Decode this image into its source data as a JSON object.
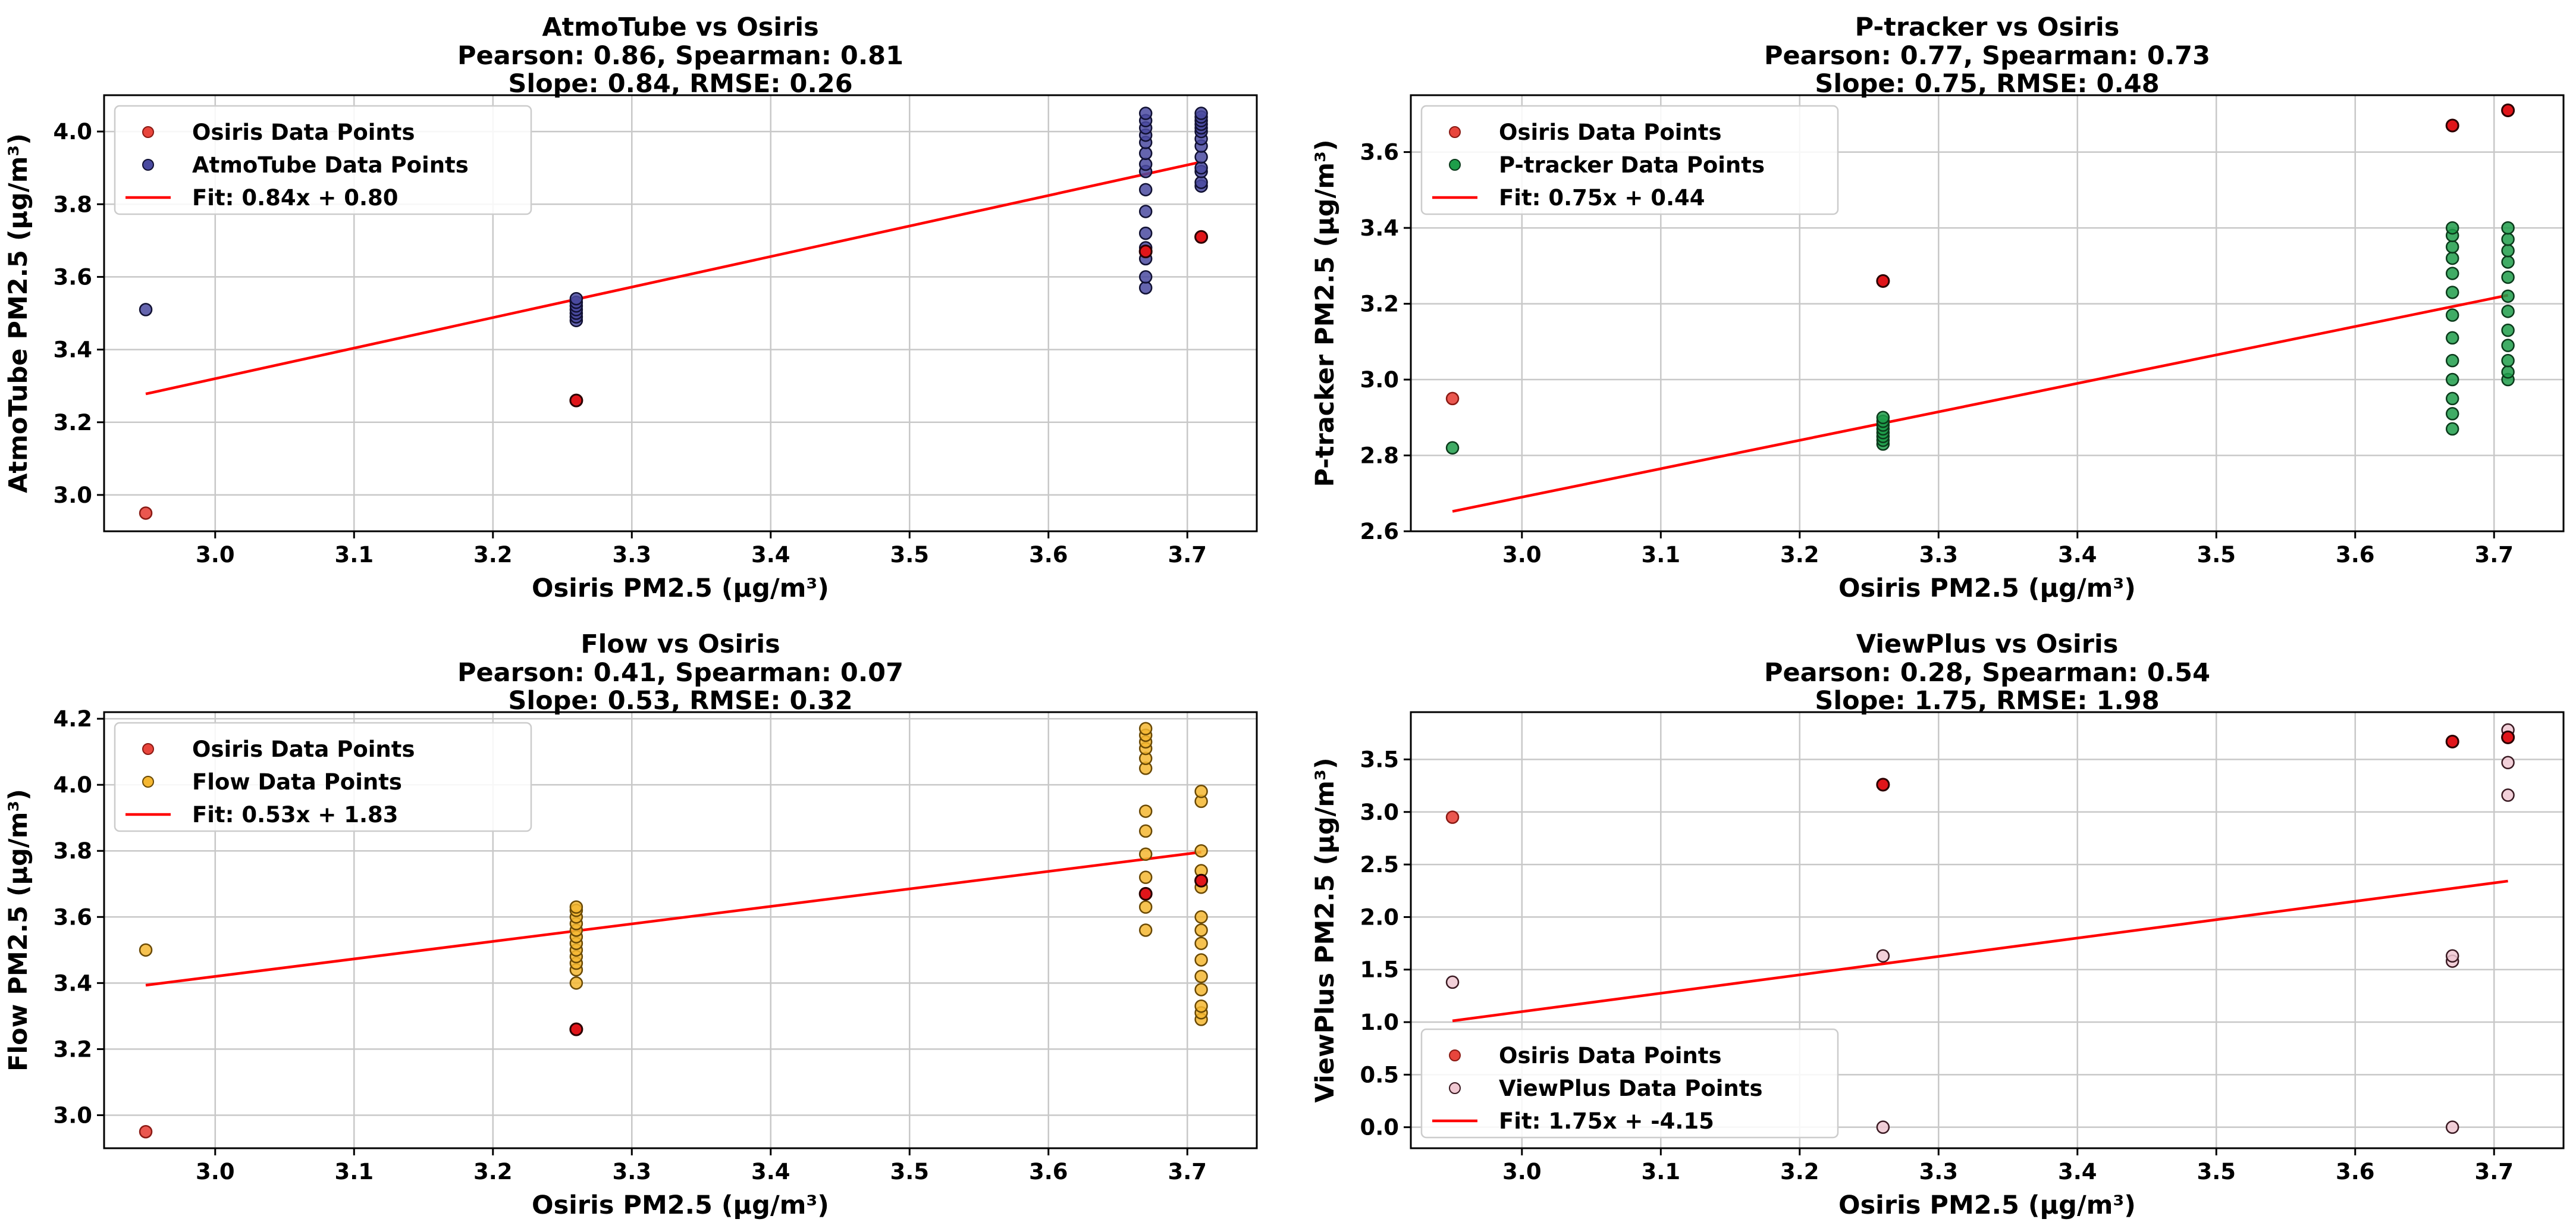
{
  "chart_data": [
    {
      "type": "scatter",
      "title": "AtmoTube vs Osiris",
      "subtitle1": "Pearson: 0.86, Spearman: 0.81",
      "subtitle2": "Slope: 0.84, RMSE: 0.26",
      "xlabel": "Osiris PM2.5 (µg/m³)",
      "ylabel": "AtmoTube PM2.5 (µg/m³)",
      "xlim": [
        2.92,
        3.75
      ],
      "ylim": [
        2.9,
        4.1
      ],
      "xticks": [
        3.0,
        3.1,
        3.2,
        3.3,
        3.4,
        3.5,
        3.6,
        3.7
      ],
      "yticks": [
        3.0,
        3.2,
        3.4,
        3.6,
        3.8,
        4.0
      ],
      "tick_format": 1,
      "grid": true,
      "legend_position": "upper-left",
      "fit": {
        "slope": 0.84,
        "intercept": 0.8,
        "x_range": [
          2.95,
          3.71
        ],
        "label": "Fit: 0.84x + 0.80",
        "color": "#ff0000"
      },
      "series": [
        {
          "name": "Osiris Data Points",
          "color": "#e8453c",
          "edge": "#8a1a14",
          "points": [
            [
              2.95,
              2.95
            ],
            [
              3.26,
              3.26
            ],
            [
              3.67,
              3.67
            ],
            [
              3.71,
              3.71
            ]
          ]
        },
        {
          "name": "AtmoTube Data Points",
          "color": "#4a4aa0",
          "edge": "#111133",
          "points": [
            [
              2.95,
              3.51
            ],
            [
              3.26,
              3.48
            ],
            [
              3.26,
              3.49
            ],
            [
              3.26,
              3.5
            ],
            [
              3.26,
              3.51
            ],
            [
              3.26,
              3.52
            ],
            [
              3.26,
              3.53
            ],
            [
              3.26,
              3.54
            ],
            [
              3.67,
              3.57
            ],
            [
              3.67,
              3.6
            ],
            [
              3.67,
              3.65
            ],
            [
              3.67,
              3.68
            ],
            [
              3.67,
              3.72
            ],
            [
              3.67,
              3.78
            ],
            [
              3.67,
              3.84
            ],
            [
              3.67,
              3.89
            ],
            [
              3.67,
              3.91
            ],
            [
              3.67,
              3.94
            ],
            [
              3.67,
              3.97
            ],
            [
              3.67,
              3.99
            ],
            [
              3.67,
              4.01
            ],
            [
              3.67,
              4.03
            ],
            [
              3.67,
              4.05
            ],
            [
              3.71,
              3.85
            ],
            [
              3.71,
              3.86
            ],
            [
              3.71,
              3.89
            ],
            [
              3.71,
              3.9
            ],
            [
              3.71,
              3.93
            ],
            [
              3.71,
              3.96
            ],
            [
              3.71,
              3.98
            ],
            [
              3.71,
              4.0
            ],
            [
              3.71,
              4.01
            ],
            [
              3.71,
              4.02
            ],
            [
              3.71,
              4.03
            ],
            [
              3.71,
              4.04
            ],
            [
              3.71,
              4.05
            ]
          ]
        }
      ]
    },
    {
      "type": "scatter",
      "title": "P-tracker vs Osiris",
      "subtitle1": "Pearson: 0.77, Spearman: 0.73",
      "subtitle2": "Slope: 0.75, RMSE: 0.48",
      "xlabel": "Osiris PM2.5 (µg/m³)",
      "ylabel": "P-tracker PM2.5 (µg/m³)",
      "xlim": [
        2.92,
        3.75
      ],
      "ylim": [
        2.6,
        3.75
      ],
      "xticks": [
        3.0,
        3.1,
        3.2,
        3.3,
        3.4,
        3.5,
        3.6,
        3.7
      ],
      "yticks": [
        2.6,
        2.8,
        3.0,
        3.2,
        3.4,
        3.6
      ],
      "tick_format": 1,
      "grid": true,
      "legend_position": "upper-left",
      "fit": {
        "slope": 0.75,
        "intercept": 0.44,
        "x_range": [
          2.95,
          3.71
        ],
        "label": "Fit: 0.75x + 0.44",
        "color": "#ff0000"
      },
      "series": [
        {
          "name": "Osiris Data Points",
          "color": "#e8453c",
          "edge": "#8a1a14",
          "points": [
            [
              2.95,
              2.95
            ],
            [
              3.26,
              3.26
            ],
            [
              3.67,
              3.67
            ],
            [
              3.71,
              3.71
            ]
          ]
        },
        {
          "name": "P-tracker Data Points",
          "color": "#1e9e4a",
          "edge": "#0b3a1b",
          "points": [
            [
              2.95,
              2.82
            ],
            [
              3.26,
              2.83
            ],
            [
              3.26,
              2.84
            ],
            [
              3.26,
              2.85
            ],
            [
              3.26,
              2.86
            ],
            [
              3.26,
              2.87
            ],
            [
              3.26,
              2.88
            ],
            [
              3.26,
              2.89
            ],
            [
              3.26,
              2.9
            ],
            [
              3.67,
              2.87
            ],
            [
              3.67,
              2.91
            ],
            [
              3.67,
              2.95
            ],
            [
              3.67,
              3.0
            ],
            [
              3.67,
              3.05
            ],
            [
              3.67,
              3.11
            ],
            [
              3.67,
              3.17
            ],
            [
              3.67,
              3.23
            ],
            [
              3.67,
              3.28
            ],
            [
              3.67,
              3.32
            ],
            [
              3.67,
              3.35
            ],
            [
              3.67,
              3.38
            ],
            [
              3.67,
              3.4
            ],
            [
              3.71,
              3.0
            ],
            [
              3.71,
              3.02
            ],
            [
              3.71,
              3.05
            ],
            [
              3.71,
              3.09
            ],
            [
              3.71,
              3.13
            ],
            [
              3.71,
              3.18
            ],
            [
              3.71,
              3.22
            ],
            [
              3.71,
              3.27
            ],
            [
              3.71,
              3.31
            ],
            [
              3.71,
              3.34
            ],
            [
              3.71,
              3.37
            ],
            [
              3.71,
              3.4
            ]
          ]
        }
      ]
    },
    {
      "type": "scatter",
      "title": "Flow vs Osiris",
      "subtitle1": "Pearson: 0.41, Spearman: 0.07",
      "subtitle2": "Slope: 0.53, RMSE: 0.32",
      "xlabel": "Osiris PM2.5 (µg/m³)",
      "ylabel": "Flow PM2.5 (µg/m³)",
      "xlim": [
        2.92,
        3.75
      ],
      "ylim": [
        2.9,
        4.22
      ],
      "xticks": [
        3.0,
        3.1,
        3.2,
        3.3,
        3.4,
        3.5,
        3.6,
        3.7
      ],
      "yticks": [
        3.0,
        3.2,
        3.4,
        3.6,
        3.8,
        4.0,
        4.2
      ],
      "tick_format": 1,
      "grid": true,
      "legend_position": "upper-left",
      "fit": {
        "slope": 0.53,
        "intercept": 1.83,
        "x_range": [
          2.95,
          3.71
        ],
        "label": "Fit: 0.53x + 1.83",
        "color": "#ff0000"
      },
      "series": [
        {
          "name": "Osiris Data Points",
          "color": "#e8453c",
          "edge": "#8a1a14",
          "points": [
            [
              2.95,
              2.95
            ],
            [
              3.26,
              3.26
            ],
            [
              3.67,
              3.67
            ],
            [
              3.71,
              3.71
            ]
          ]
        },
        {
          "name": "Flow Data Points",
          "color": "#f5b731",
          "edge": "#6b4a05",
          "points": [
            [
              2.95,
              3.5
            ],
            [
              3.26,
              3.4
            ],
            [
              3.26,
              3.44
            ],
            [
              3.26,
              3.46
            ],
            [
              3.26,
              3.48
            ],
            [
              3.26,
              3.5
            ],
            [
              3.26,
              3.52
            ],
            [
              3.26,
              3.54
            ],
            [
              3.26,
              3.56
            ],
            [
              3.26,
              3.58
            ],
            [
              3.26,
              3.6
            ],
            [
              3.26,
              3.62
            ],
            [
              3.26,
              3.63
            ],
            [
              3.67,
              3.56
            ],
            [
              3.67,
              3.63
            ],
            [
              3.67,
              3.72
            ],
            [
              3.67,
              3.79
            ],
            [
              3.67,
              3.86
            ],
            [
              3.67,
              3.92
            ],
            [
              3.67,
              4.05
            ],
            [
              3.67,
              4.08
            ],
            [
              3.67,
              4.11
            ],
            [
              3.67,
              4.13
            ],
            [
              3.67,
              4.15
            ],
            [
              3.67,
              4.17
            ],
            [
              3.71,
              3.29
            ],
            [
              3.71,
              3.31
            ],
            [
              3.71,
              3.33
            ],
            [
              3.71,
              3.38
            ],
            [
              3.71,
              3.42
            ],
            [
              3.71,
              3.47
            ],
            [
              3.71,
              3.52
            ],
            [
              3.71,
              3.56
            ],
            [
              3.71,
              3.6
            ],
            [
              3.71,
              3.69
            ],
            [
              3.71,
              3.74
            ],
            [
              3.71,
              3.8
            ],
            [
              3.71,
              3.95
            ],
            [
              3.71,
              3.98
            ]
          ]
        }
      ]
    },
    {
      "type": "scatter",
      "title": "ViewPlus vs Osiris",
      "subtitle1": "Pearson: 0.28, Spearman: 0.54",
      "subtitle2": "Slope: 1.75, RMSE: 1.98",
      "xlabel": "Osiris PM2.5 (µg/m³)",
      "ylabel": "ViewPlus PM2.5 (µg/m³)",
      "xlim": [
        2.92,
        3.75
      ],
      "ylim": [
        -0.2,
        3.95
      ],
      "xticks": [
        3.0,
        3.1,
        3.2,
        3.3,
        3.4,
        3.5,
        3.6,
        3.7
      ],
      "yticks": [
        0.0,
        0.5,
        1.0,
        1.5,
        2.0,
        2.5,
        3.0,
        3.5
      ],
      "tick_format": 1,
      "grid": true,
      "legend_position": "lower-left",
      "fit": {
        "slope": 1.75,
        "intercept": -4.15,
        "x_range": [
          2.95,
          3.71
        ],
        "label": "Fit: 1.75x + -4.15",
        "color": "#ff0000"
      },
      "series": [
        {
          "name": "Osiris Data Points",
          "color": "#e8453c",
          "edge": "#8a1a14",
          "points": [
            [
              2.95,
              2.95
            ],
            [
              3.26,
              3.26
            ],
            [
              3.67,
              3.67
            ],
            [
              3.71,
              3.71
            ]
          ]
        },
        {
          "name": "ViewPlus Data Points",
          "color": "#f0c8d2",
          "edge": "#3a1a22",
          "points": [
            [
              2.95,
              1.38
            ],
            [
              3.26,
              0.0
            ],
            [
              3.26,
              1.63
            ],
            [
              3.26,
              3.26
            ],
            [
              3.67,
              0.0
            ],
            [
              3.67,
              1.58
            ],
            [
              3.67,
              1.63
            ],
            [
              3.71,
              3.16
            ],
            [
              3.71,
              3.47
            ],
            [
              3.71,
              3.78
            ]
          ]
        }
      ]
    }
  ]
}
